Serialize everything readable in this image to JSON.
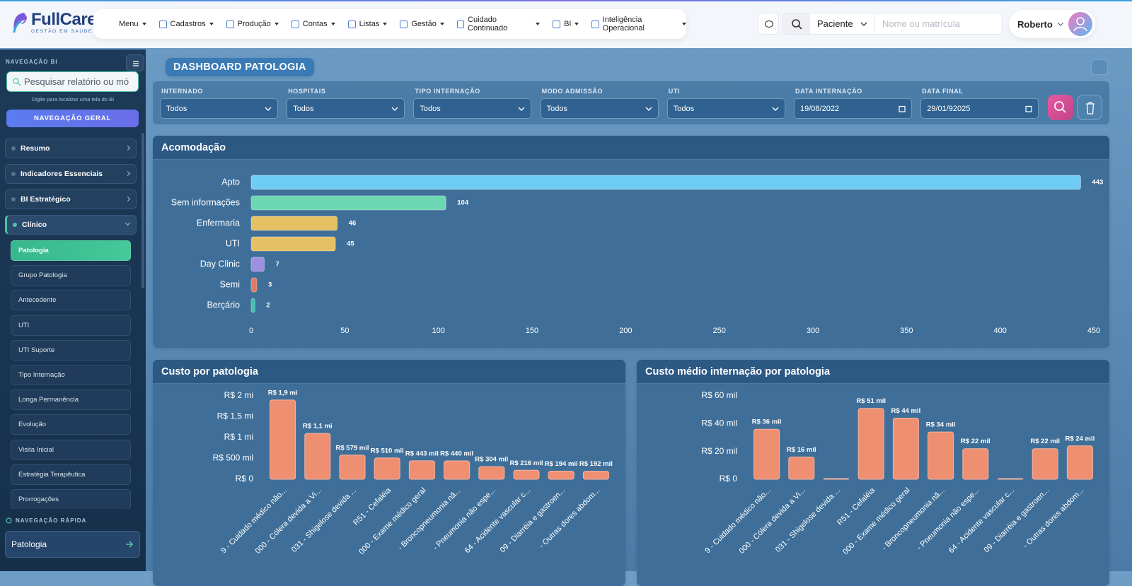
{
  "header": {
    "brand": "FullCare",
    "tagline": "GESTÃO EM SAÚDE",
    "menu": [
      "Menu",
      "Cadastros",
      "Produção",
      "Contas",
      "Listas",
      "Gestão",
      "Cuidado Continuado",
      "BI",
      "Inteligência Operacional"
    ],
    "search_type": "Paciente",
    "search_placeholder": "Nome ou matrícula",
    "user": "Roberto"
  },
  "sidebar": {
    "title": "NAVEGAÇÃO BI",
    "search_placeholder": "Pesquisar relatório ou mó",
    "hint": "Digite para localizar uma tela do BI",
    "button": "NAVEGAÇÃO GERAL",
    "sections": [
      {
        "label": "Resumo"
      },
      {
        "label": "Indicadores Essenciais"
      },
      {
        "label": "BI Estratégico"
      },
      {
        "label": "Clínico",
        "active_item": 0,
        "items": [
          "Patologia",
          "Grupo Patologia",
          "Antecedente",
          "UTI",
          "UTI Suporte",
          "Tipo Internação",
          "Longa Permanência",
          "Evolução",
          "Visita Inicial",
          "Estratégia Terapêutica",
          "Prorrogações"
        ]
      }
    ],
    "quick_nav_title": "NAVEGAÇÃO RÁPIDA",
    "quick_nav_value": "Patologia"
  },
  "dashboard": {
    "title": "DASHBOARD PATOLOGIA",
    "filters": [
      {
        "label": "INTERNADO",
        "value": "Todos"
      },
      {
        "label": "HOSPITAIS",
        "value": "Todos"
      },
      {
        "label": "TIPO INTERNAÇÃO",
        "value": "Todos"
      },
      {
        "label": "MODO ADMISSÃO",
        "value": "Todos"
      },
      {
        "label": "UTI",
        "value": "Todos"
      },
      {
        "label": "DATA INTERNAÇÃO",
        "value": "19/08/2022"
      },
      {
        "label": "DATA FINAL",
        "value": "29/01/92025"
      }
    ],
    "charts": [
      {
        "type": "hbar",
        "title": "Acomodação",
        "categories": [
          "Apto",
          "Sem informações",
          "Enfermaria",
          "UTI",
          "Day Clinic",
          "Semi",
          "Berçário"
        ],
        "values": [
          443,
          104,
          46,
          45,
          7,
          3,
          2
        ],
        "colors": [
          "#6fcdf5",
          "#6dd6b3",
          "#e6c163",
          "#e6c163",
          "#9d8fe2",
          "#e07a62",
          "#3fbfb0"
        ],
        "xlim": [
          0,
          450
        ],
        "xticks": [
          0,
          50,
          100,
          150,
          200,
          250,
          300,
          350,
          400,
          450
        ]
      },
      {
        "type": "bar",
        "title": "Custo por patologia",
        "categories": [
          "9 - Cuidado médico não...",
          "000 - Cólera devida a Vi...",
          "031 - Shigelose devida ...",
          "R51 - Cefaléia",
          "000 - Exame médico geral",
          "- Broncopneumonia nã...",
          "- Pneumonia não espe...",
          "64 - Acidente vascular c...",
          "09 - Diarréia e gastroen...",
          "- Outras dores abdom..."
        ],
        "values": [
          1900000,
          1100000,
          579000,
          510000,
          443000,
          440000,
          304000,
          216000,
          194000,
          192000
        ],
        "value_labels": [
          "R$ 1,9 mi",
          "R$ 1,1 mi",
          "R$ 579 mil",
          "R$ 510 mil",
          "R$ 443 mil",
          "R$ 440 mil",
          "R$ 304 mil",
          "R$ 216 mil",
          "R$ 194 mil",
          "R$ 192 mil"
        ],
        "color": "#ee8f72",
        "ylim": [
          0,
          2000000
        ],
        "yticks": [
          {
            "value": 0,
            "label": "R$ 0"
          },
          {
            "value": 500000,
            "label": "R$ 500 mil"
          },
          {
            "value": 1000000,
            "label": "R$ 1 mi"
          },
          {
            "value": 1500000,
            "label": "R$ 1,5 mi"
          },
          {
            "value": 2000000,
            "label": "R$ 2 mi"
          }
        ]
      },
      {
        "type": "bar",
        "title": "Custo médio internação por patologia",
        "categories": [
          "9 - Cuidado médico não...",
          "000 - Cólera devida a Vi...",
          "031 - Shigelose devida ...",
          "R51 - Cefaléia",
          "000 - Exame médico geral",
          "- Broncopneumonia nã...",
          "- Pneumonia não espe...",
          "64 - Acidente vascular c...",
          "09 - Diarréia e gastroen...",
          "- Outras dores abdom..."
        ],
        "values": [
          36000,
          16000,
          500,
          51000,
          44000,
          34000,
          22000,
          500,
          22000,
          24000
        ],
        "value_labels": [
          "R$ 36 mil",
          "R$ 16 mil",
          null,
          "R$ 51 mil",
          "R$ 44 mil",
          "R$ 34 mil",
          "R$ 22 mil",
          null,
          "R$ 22 mil",
          "R$ 24 mil"
        ],
        "color": "#ee8f72",
        "ylim": [
          0,
          60000
        ],
        "yticks": [
          {
            "value": 0,
            "label": "R$ 0"
          },
          {
            "value": 20000,
            "label": "R$ 20 mil"
          },
          {
            "value": 40000,
            "label": "R$ 40 mil"
          },
          {
            "value": 60000,
            "label": "R$ 60 mil"
          }
        ]
      }
    ]
  }
}
